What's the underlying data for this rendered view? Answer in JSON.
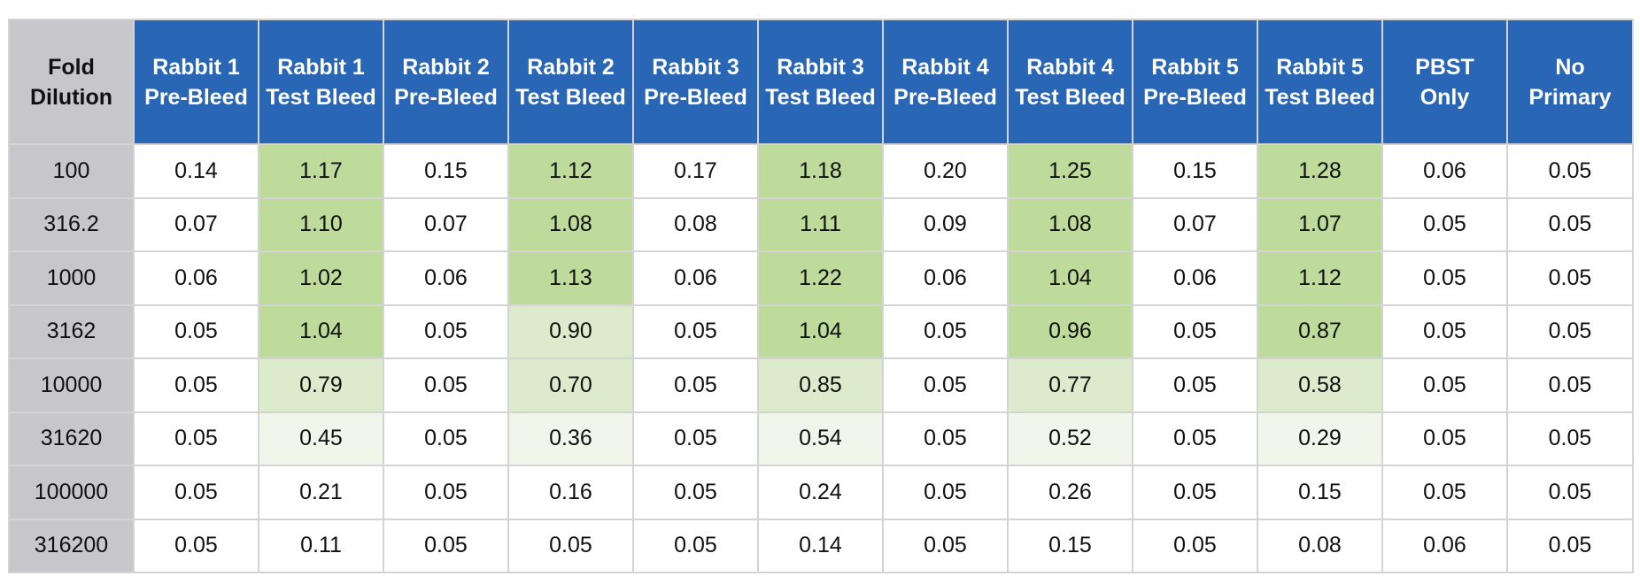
{
  "chart_data": {
    "type": "table",
    "corner_header": "Fold Dilution",
    "columns": [
      "Rabbit 1 Pre-Bleed",
      "Rabbit 1 Test Bleed",
      "Rabbit 2 Pre-Bleed",
      "Rabbit 2 Test Bleed",
      "Rabbit 3 Pre-Bleed",
      "Rabbit 3 Test Bleed",
      "Rabbit 4 Pre-Bleed",
      "Rabbit 4 Test Bleed",
      "Rabbit 5 Pre-Bleed",
      "Rabbit 5 Test Bleed",
      "PBST Only",
      "No Primary"
    ],
    "row_labels": [
      "100",
      "316.2",
      "1000",
      "3162",
      "10000",
      "31620",
      "100000",
      "316200"
    ],
    "rows": [
      [
        "0.14",
        "1.17",
        "0.15",
        "1.12",
        "0.17",
        "1.18",
        "0.20",
        "1.25",
        "0.15",
        "1.28",
        "0.06",
        "0.05"
      ],
      [
        "0.07",
        "1.10",
        "0.07",
        "1.08",
        "0.08",
        "1.11",
        "0.09",
        "1.08",
        "0.07",
        "1.07",
        "0.05",
        "0.05"
      ],
      [
        "0.06",
        "1.02",
        "0.06",
        "1.13",
        "0.06",
        "1.22",
        "0.06",
        "1.04",
        "0.06",
        "1.12",
        "0.05",
        "0.05"
      ],
      [
        "0.05",
        "1.04",
        "0.05",
        "0.90",
        "0.05",
        "1.04",
        "0.05",
        "0.96",
        "0.05",
        "0.87",
        "0.05",
        "0.05"
      ],
      [
        "0.05",
        "0.79",
        "0.05",
        "0.70",
        "0.05",
        "0.85",
        "0.05",
        "0.77",
        "0.05",
        "0.58",
        "0.05",
        "0.05"
      ],
      [
        "0.05",
        "0.45",
        "0.05",
        "0.36",
        "0.05",
        "0.54",
        "0.05",
        "0.52",
        "0.05",
        "0.29",
        "0.05",
        "0.05"
      ],
      [
        "0.05",
        "0.21",
        "0.05",
        "0.16",
        "0.05",
        "0.24",
        "0.05",
        "0.26",
        "0.05",
        "0.15",
        "0.05",
        "0.05"
      ],
      [
        "0.05",
        "0.11",
        "0.05",
        "0.05",
        "0.05",
        "0.14",
        "0.05",
        "0.15",
        "0.05",
        "0.08",
        "0.06",
        "0.05"
      ]
    ],
    "highlight_levels": [
      [
        0,
        3,
        0,
        3,
        0,
        3,
        0,
        3,
        0,
        3,
        0,
        0
      ],
      [
        0,
        3,
        0,
        3,
        0,
        3,
        0,
        3,
        0,
        3,
        0,
        0
      ],
      [
        0,
        3,
        0,
        3,
        0,
        3,
        0,
        3,
        0,
        3,
        0,
        0
      ],
      [
        0,
        3,
        0,
        2,
        0,
        3,
        0,
        3,
        0,
        3,
        0,
        0
      ],
      [
        0,
        2,
        0,
        2,
        0,
        2,
        0,
        2,
        0,
        2,
        0,
        0
      ],
      [
        0,
        1,
        0,
        1,
        0,
        1,
        0,
        1,
        0,
        1,
        0,
        0
      ],
      [
        0,
        0,
        0,
        0,
        0,
        0,
        0,
        0,
        0,
        0,
        0,
        0
      ],
      [
        0,
        0,
        0,
        0,
        0,
        0,
        0,
        0,
        0,
        0,
        0,
        0
      ]
    ],
    "colors": {
      "header_bg": "#2a66b6",
      "header_text": "#ffffff",
      "row_header_bg": "#c7c6ca",
      "highlight_scale": [
        "#ffffff",
        "#f0f6ea",
        "#dbebcb",
        "#bedb9c"
      ]
    }
  }
}
